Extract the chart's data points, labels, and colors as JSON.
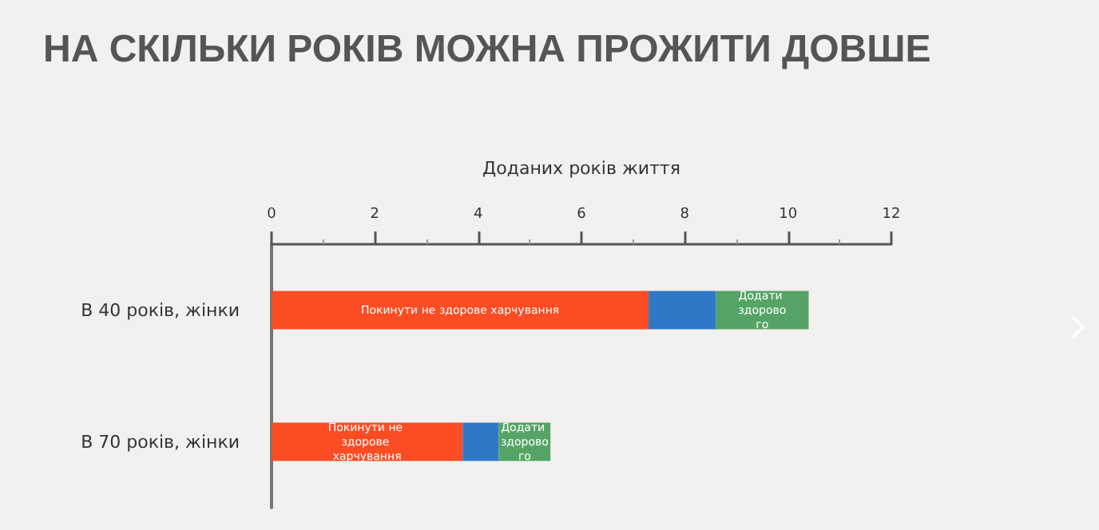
{
  "chart_data": {
    "type": "bar",
    "orientation": "horizontal",
    "stacked": true,
    "title": "НА СКІЛЬКИ РОКІВ МОЖНА ПРОЖИТИ ДОВШЕ",
    "xlabel": "Доданих років життя",
    "categories": [
      "В 40 років, жінки",
      "В 70 років, жінки"
    ],
    "series": [
      {
        "name": "Покинути не здорове харчування",
        "color": "#fc4c24",
        "values": [
          7.3,
          3.7
        ]
      },
      {
        "color": "#2f78c8",
        "values": [
          1.3,
          0.7
        ]
      },
      {
        "name": "Додати здорового",
        "color": "#55a466",
        "values": [
          1.8,
          1.0
        ]
      }
    ],
    "xlim": [
      0,
      12
    ],
    "xticks": [
      0,
      2,
      4,
      6,
      8,
      10,
      12
    ],
    "grid": false,
    "legend": false
  }
}
